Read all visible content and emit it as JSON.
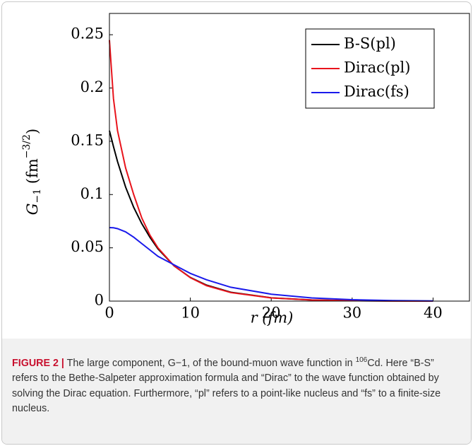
{
  "chart_data": {
    "type": "line",
    "x": [
      0,
      0.5,
      1,
      2,
      3,
      4,
      5,
      6,
      8,
      10,
      12,
      15,
      20,
      25,
      30,
      35,
      40
    ],
    "series": [
      {
        "name": "B-S(pl)",
        "color": "#000000",
        "values": [
          0.16,
          0.145,
          0.131,
          0.107,
          0.088,
          0.0727,
          0.06,
          0.049,
          0.033,
          0.0222,
          0.015,
          0.0083,
          0.0031,
          0.0011,
          0.0004,
          0.0002,
          0
        ]
      },
      {
        "name": "Dirac(pl)",
        "color": "#e8141c",
        "values": [
          0.245,
          0.19,
          0.16,
          0.125,
          0.1,
          0.078,
          0.062,
          0.05,
          0.033,
          0.022,
          0.0145,
          0.008,
          0.003,
          0.001,
          0.0004,
          0.0001,
          0
        ]
      },
      {
        "name": "Dirac(fs)",
        "color": "#1a1aeb",
        "values": [
          0.069,
          0.0688,
          0.068,
          0.065,
          0.06,
          0.054,
          0.048,
          0.042,
          0.034,
          0.026,
          0.02,
          0.013,
          0.0065,
          0.003,
          0.0013,
          0.0005,
          0.0002
        ]
      }
    ],
    "xlim": [
      0,
      44.5
    ],
    "ylim": [
      0,
      0.27
    ],
    "xticks": [
      0,
      10,
      20,
      30,
      40
    ],
    "yticks": [
      0,
      0.05,
      0.1,
      0.15,
      0.2,
      0.25
    ],
    "x_label": "r (fm)",
    "y_label": {
      "symbol": "G",
      "subscript": "−1",
      "unit": "fm",
      "exponent": "−3/2"
    },
    "legend": "upper right"
  },
  "caption": {
    "label": "FIGURE 2 |",
    "text_before": "The large component, G−1, of the bound-muon wave function in",
    "superscript": "106",
    "text_after": "Cd. Here “B-S” refers to the Bethe-Salpeter approximation formula and “Dirac” to the wave function obtained by solving the Dirac equation. Furthermore, “pl” refers to a point-like nucleus and “fs” to a finite-size nucleus."
  }
}
